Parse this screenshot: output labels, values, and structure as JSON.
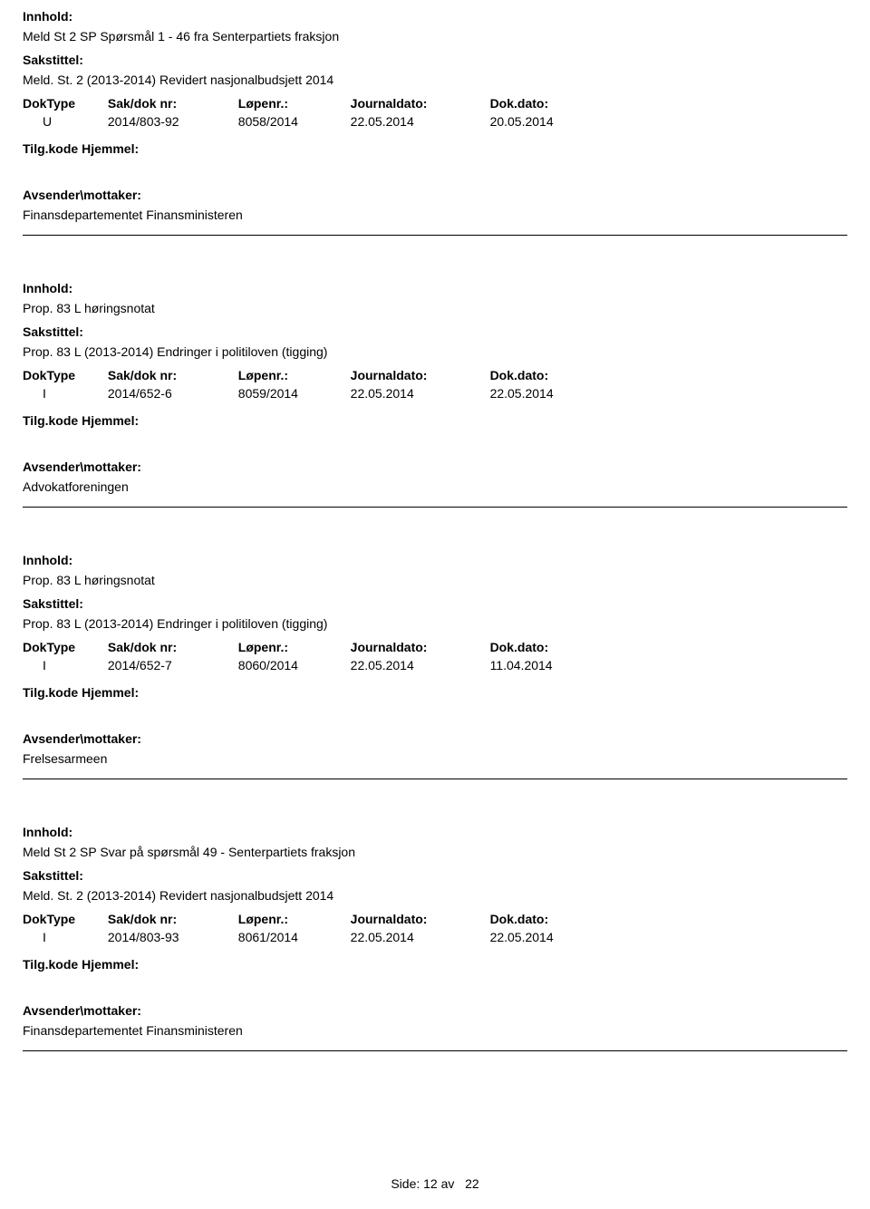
{
  "labels": {
    "innhold": "Innhold:",
    "sakstittel": "Sakstittel:",
    "doktype": "DokType",
    "saknr": "Sak/dok nr:",
    "lopenr": "Løpenr.:",
    "journal": "Journaldato:",
    "dokdato": "Dok.dato:",
    "tilgkode": "Tilg.kode",
    "hjemmel": "Hjemmel:",
    "avsender": "Avsender\\mottaker:"
  },
  "entries": [
    {
      "innhold": "Meld St 2 SP Spørsmål 1 - 46 fra Senterpartiets fraksjon",
      "sakstittel": "Meld. St. 2 (2013-2014) Revidert nasjonalbudsjett 2014",
      "doktype": "U",
      "saknr": "2014/803-92",
      "lopenr": "8058/2014",
      "journal": "22.05.2014",
      "dokdato": "20.05.2014",
      "avsender": "Finansdepartementet Finansministeren"
    },
    {
      "innhold": "Prop. 83 L høringsnotat",
      "sakstittel": "Prop. 83 L (2013-2014) Endringer i politiloven (tigging)",
      "doktype": "I",
      "saknr": "2014/652-6",
      "lopenr": "8059/2014",
      "journal": "22.05.2014",
      "dokdato": "22.05.2014",
      "avsender": "Advokatforeningen"
    },
    {
      "innhold": "Prop. 83 L høringsnotat",
      "sakstittel": "Prop. 83 L (2013-2014) Endringer i politiloven (tigging)",
      "doktype": "I",
      "saknr": "2014/652-7",
      "lopenr": "8060/2014",
      "journal": "22.05.2014",
      "dokdato": "11.04.2014",
      "avsender": "Frelsesarmeen"
    },
    {
      "innhold": "Meld St 2 SP Svar på spørsmål 49 - Senterpartiets fraksjon",
      "sakstittel": "Meld. St. 2 (2013-2014) Revidert nasjonalbudsjett 2014",
      "doktype": "I",
      "saknr": "2014/803-93",
      "lopenr": "8061/2014",
      "journal": "22.05.2014",
      "dokdato": "22.05.2014",
      "avsender": "Finansdepartementet Finansministeren"
    }
  ],
  "footer": {
    "side": "Side:",
    "page": "12",
    "av": "av",
    "total": "22"
  }
}
